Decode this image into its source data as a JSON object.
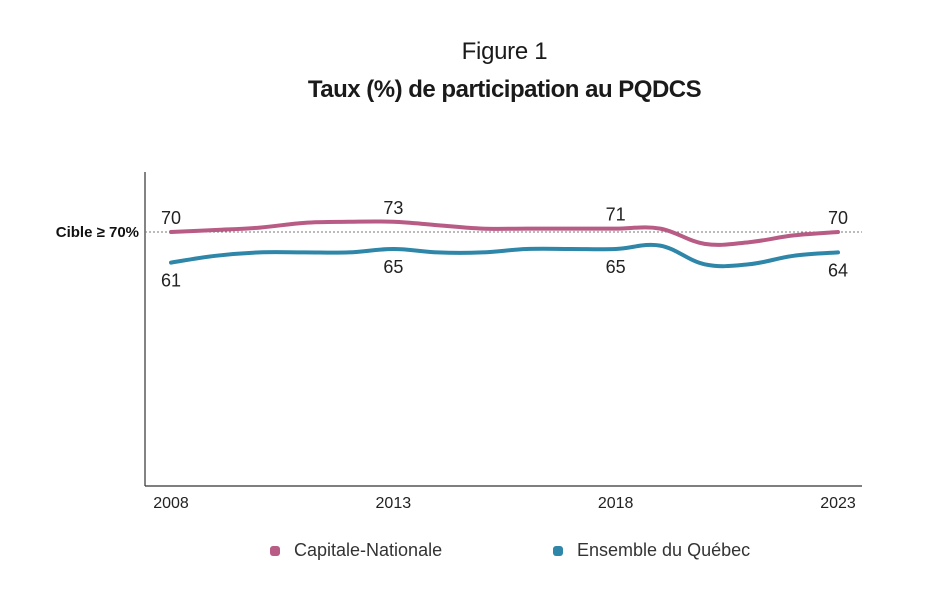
{
  "figure_label": "Figure 1",
  "title": "Taux (%) de participation au PQDCS",
  "target_label": "Cible ≥ 70%",
  "chart_data": {
    "type": "line",
    "title": "Taux (%) de participation au PQDCS",
    "xlabel": "",
    "ylabel": "",
    "x_ticks": [
      2008,
      2013,
      2018,
      2023
    ],
    "ylim": [
      40,
      80
    ],
    "target": 70,
    "grid": false,
    "legend_position": "bottom",
    "series": [
      {
        "name": "Capitale-Nationale",
        "color": "#b85b85",
        "x": [
          2008,
          2009,
          2010,
          2011,
          2012,
          2013,
          2014,
          2015,
          2016,
          2017,
          2018,
          2019,
          2020,
          2021,
          2022,
          2023
        ],
        "values": [
          70,
          70.6,
          71.3,
          72.7,
          73,
          73,
          72,
          71,
          71,
          71,
          71,
          71,
          66.5,
          67,
          69,
          70
        ],
        "labels": [
          {
            "x": 2008,
            "text": "70",
            "pos": "above"
          },
          {
            "x": 2013,
            "text": "73",
            "pos": "above"
          },
          {
            "x": 2018,
            "text": "71",
            "pos": "above"
          },
          {
            "x": 2023,
            "text": "70",
            "pos": "above"
          }
        ]
      },
      {
        "name": "Ensemble du Québec",
        "color": "#2e86a8",
        "x": [
          2008,
          2009,
          2010,
          2011,
          2012,
          2013,
          2014,
          2015,
          2016,
          2017,
          2018,
          2019,
          2020,
          2021,
          2022,
          2023
        ],
        "values": [
          61,
          63,
          64,
          64,
          64,
          65,
          64,
          64,
          65,
          65,
          65,
          66,
          60.5,
          60.5,
          63,
          64
        ],
        "labels": [
          {
            "x": 2008,
            "text": "61",
            "pos": "below"
          },
          {
            "x": 2013,
            "text": "65",
            "pos": "below"
          },
          {
            "x": 2018,
            "text": "65",
            "pos": "below"
          },
          {
            "x": 2023,
            "text": "64",
            "pos": "below"
          }
        ]
      }
    ]
  }
}
